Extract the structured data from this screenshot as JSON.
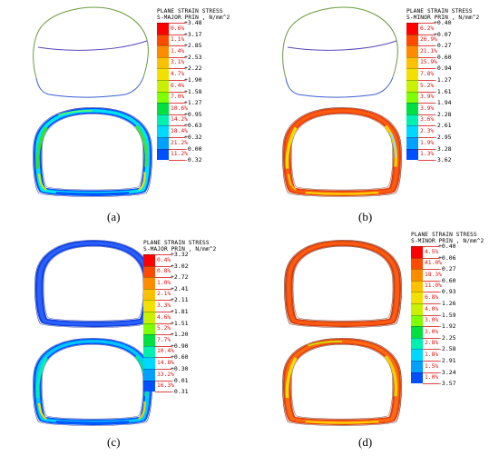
{
  "colors": {
    "scale": [
      "#ff0000",
      "#ff4a00",
      "#ff8c00",
      "#ffc000",
      "#f2e000",
      "#c8f000",
      "#80ff00",
      "#00e040",
      "#00f0b0",
      "#00d8ff",
      "#00a0ff",
      "#0050ff",
      "#0010f0"
    ]
  },
  "panels": [
    {
      "id": "a",
      "caption": "(a)",
      "legend_title": [
        "PLANE STRAIN STRESS",
        "S-MAJOR PRIN , N/mm^2"
      ],
      "bounds": [
        "+3.48",
        "+3.17",
        "+2.85",
        "+2.53",
        "+2.22",
        "+1.90",
        "+1.58",
        "+1.27",
        "+0.95",
        "+0.63",
        "+0.32",
        "-0.00",
        "-0.32"
      ],
      "percents": [
        "0.6%",
        "1.1%",
        "1.4%",
        "3.1%",
        "4.7%",
        "6.4%",
        "7.0%",
        "10.6%",
        "14.2%",
        "18.4%",
        "21.2%",
        "11.2%"
      ]
    },
    {
      "id": "b",
      "caption": "(b)",
      "legend_title": [
        "PLANE STRAIN STRESS",
        "S-MINOR PRIN , N/mm^2"
      ],
      "bounds": [
        "+0.40",
        "+0.07",
        "-0.27",
        "-0.60",
        "-0.94",
        "-1.27",
        "-1.61",
        "-1.94",
        "-2.28",
        "-2.61",
        "-2.95",
        "-3.28",
        "-3.62"
      ],
      "percents": [
        "6.2%",
        "26.9%",
        "21.1%",
        "15.9%",
        "7.8%",
        "5.2%",
        "3.9%",
        "3.9%",
        "3.6%",
        "2.3%",
        "1.9%",
        "1.3%"
      ]
    },
    {
      "id": "c",
      "caption": "(c)",
      "legend_title": [
        "PLANE STRAIN STRESS",
        "S-MAJOR PRIN , N/mm^2"
      ],
      "bounds": [
        "+3.32",
        "+3.02",
        "+2.72",
        "+2.41",
        "+2.11",
        "+1.81",
        "+1.51",
        "+1.20",
        "+0.90",
        "+0.60",
        "+0.30",
        "-0.01",
        "-0.31"
      ],
      "percents": [
        "0.4%",
        "0.8%",
        "1.0%",
        "2.1%",
        "3.3%",
        "4.6%",
        "5.2%",
        "7.7%",
        "10.4%",
        "14.8%",
        "33.2%",
        "16.3%"
      ]
    },
    {
      "id": "d",
      "caption": "(d)",
      "legend_title": [
        "PLANE STRAIN STRESS",
        "S-MINOR PRIN , N/mm^2"
      ],
      "bounds": [
        "+0.40",
        "+0.06",
        "-0.27",
        "-0.60",
        "-0.93",
        "-1.26",
        "-1.59",
        "-1.92",
        "-2.25",
        "-2.58",
        "-2.91",
        "-3.24",
        "-3.57"
      ],
      "percents": [
        "4.5%",
        "41.0%",
        "18.3%",
        "11.0%",
        "6.8%",
        "4.0%",
        "3.0%",
        "3.0%",
        "2.8%",
        "1.8%",
        "1.5%",
        "1.0%"
      ]
    }
  ]
}
